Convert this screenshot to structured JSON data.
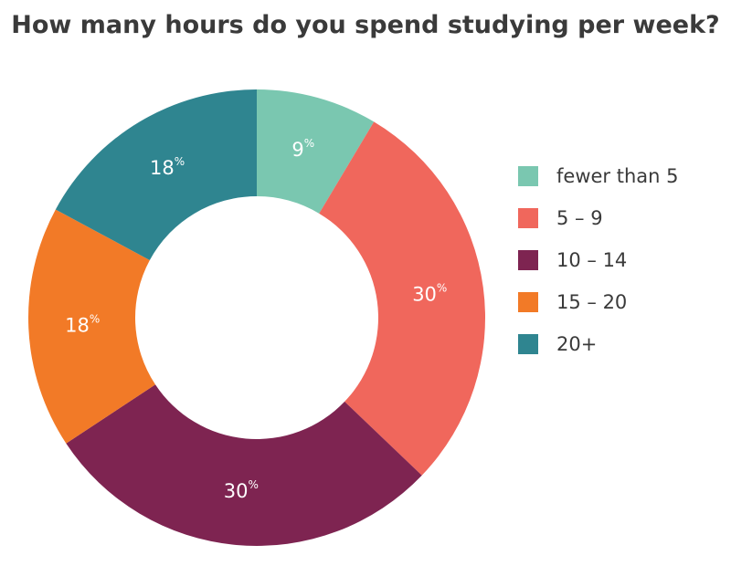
{
  "title": "How many hours do you spend studying per week?",
  "chart_data": {
    "type": "pie",
    "donut": true,
    "legend_position": "right",
    "value_suffix": "%",
    "slices": [
      {
        "label": "fewer than 5",
        "value": 9,
        "color": "#7ac7b0"
      },
      {
        "label": "5 – 9",
        "value": 30,
        "color": "#f0675c"
      },
      {
        "label": "10 – 14",
        "value": 30,
        "color": "#7e2451"
      },
      {
        "label": "15 – 20",
        "value": 18,
        "color": "#f27a27"
      },
      {
        "label": "20+",
        "value": 18,
        "color": "#2f8590"
      }
    ]
  }
}
